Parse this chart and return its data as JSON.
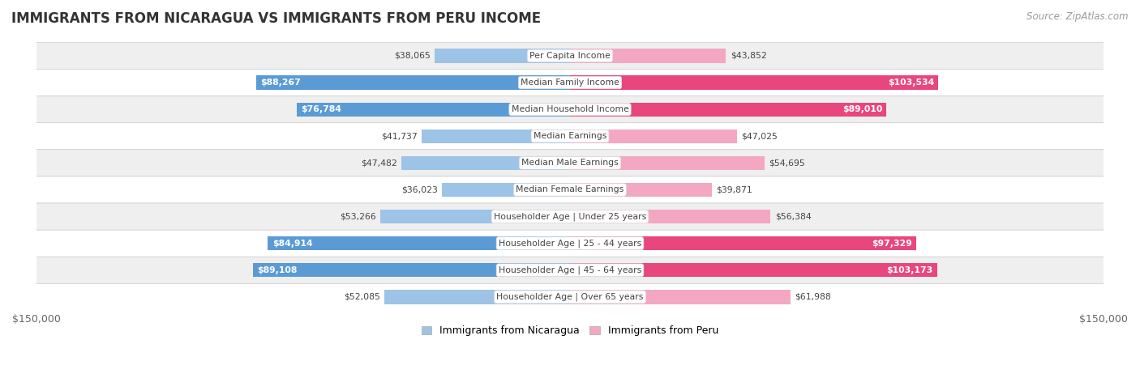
{
  "title": "IMMIGRANTS FROM NICARAGUA VS IMMIGRANTS FROM PERU INCOME",
  "source": "Source: ZipAtlas.com",
  "categories": [
    "Per Capita Income",
    "Median Family Income",
    "Median Household Income",
    "Median Earnings",
    "Median Male Earnings",
    "Median Female Earnings",
    "Householder Age | Under 25 years",
    "Householder Age | 25 - 44 years",
    "Householder Age | 45 - 64 years",
    "Householder Age | Over 65 years"
  ],
  "nicaragua_values": [
    38065,
    88267,
    76784,
    41737,
    47482,
    36023,
    53266,
    84914,
    89108,
    52085
  ],
  "peru_values": [
    43852,
    103534,
    89010,
    47025,
    54695,
    39871,
    56384,
    97329,
    103173,
    61988
  ],
  "nicaragua_labels": [
    "$38,065",
    "$88,267",
    "$76,784",
    "$41,737",
    "$47,482",
    "$36,023",
    "$53,266",
    "$84,914",
    "$89,108",
    "$52,085"
  ],
  "peru_labels": [
    "$43,852",
    "$103,534",
    "$89,010",
    "$47,025",
    "$54,695",
    "$39,871",
    "$56,384",
    "$97,329",
    "$103,173",
    "$61,988"
  ],
  "nicaragua_color_dark": "#5b9bd5",
  "nicaragua_color_light": "#9dc3e6",
  "peru_color_dark": "#e9467e",
  "peru_color_light": "#f4a7c3",
  "large_threshold": 65000,
  "max_value": 150000,
  "bar_height": 0.52,
  "background_color": "#ffffff",
  "row_bg_even": "#efefef",
  "row_bg_odd": "#ffffff",
  "legend_nic": "Immigrants from Nicaragua",
  "legend_peru": "Immigrants from Peru",
  "xlabel_left": "$150,000",
  "xlabel_right": "$150,000"
}
